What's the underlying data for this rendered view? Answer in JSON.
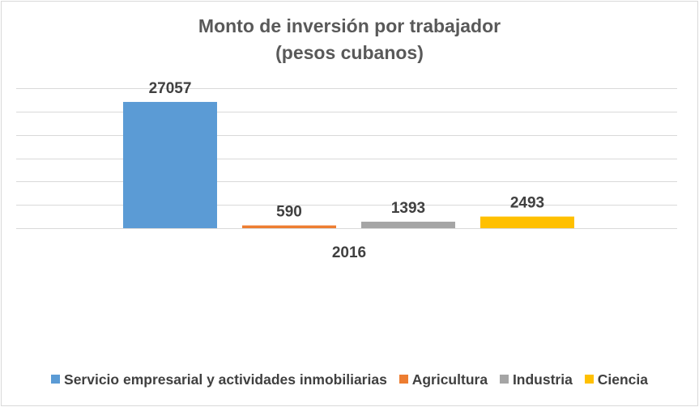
{
  "chart_data": {
    "type": "bar",
    "title": "Monto de inversión por trabajador",
    "subtitle": "(pesos cubanos)",
    "categories": [
      "2016"
    ],
    "series": [
      {
        "name": "Servicio empresarial y actividades inmobiliarias",
        "values": [
          27057
        ],
        "color": "#5b9bd5"
      },
      {
        "name": "Agricultura",
        "values": [
          590
        ],
        "color": "#ed7d31"
      },
      {
        "name": "Industria",
        "values": [
          1393
        ],
        "color": "#a5a5a5"
      },
      {
        "name": "Ciencia",
        "values": [
          2493
        ],
        "color": "#ffc000"
      }
    ],
    "ylim": [
      0,
      30000
    ],
    "grid": true,
    "legend": "bottom",
    "xlabel": "",
    "ylabel": ""
  }
}
